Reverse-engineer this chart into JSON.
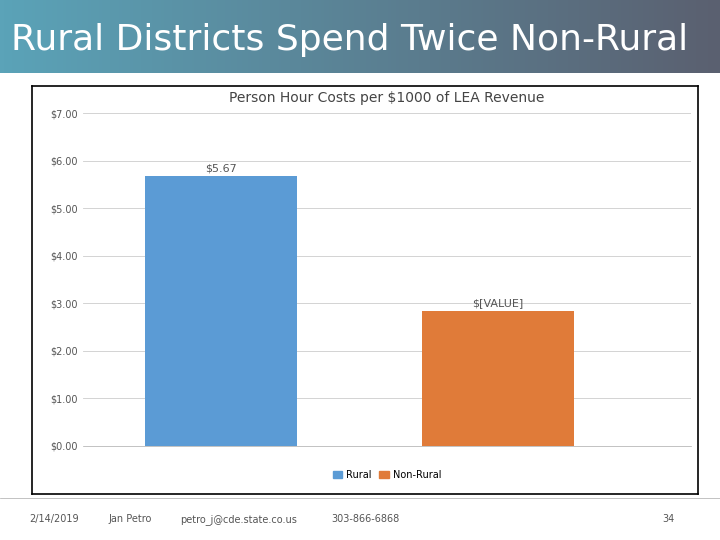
{
  "title": "Person Hour Costs per $1000 of LEA Revenue",
  "header_title": "Rural Districts Spend Twice Non-Rural",
  "categories": [
    "Rural",
    "Non-Rural"
  ],
  "values": [
    5.67,
    2.84
  ],
  "bar_labels": [
    "$5.67",
    "$[VALUE]"
  ],
  "bar_colors": [
    "#5B9BD5",
    "#E07B39"
  ],
  "ylim": [
    0,
    7
  ],
  "yticks": [
    0,
    1,
    2,
    3,
    4,
    5,
    6,
    7
  ],
  "ytick_labels": [
    "$0.00",
    "$1.00",
    "$2.00",
    "$3.00",
    "$4.00",
    "$5.00",
    "$6.00",
    "$7.00"
  ],
  "legend_labels": [
    "Rural",
    "Non-Rural"
  ],
  "header_color_left": "#5BA3B8",
  "header_color_right": "#5A6070",
  "chart_bg_color": "#FFFFFF",
  "outer_bg_color": "#FFFFFF",
  "footer_text_left": "2/14/2019",
  "footer_text_2": "Jan Petro",
  "footer_text_3": "petro_j@cde.state.co.us",
  "footer_text_4": "303-866-6868",
  "footer_page": "34",
  "title_fontsize": 10,
  "header_fontsize": 26,
  "bar_label_fontsize": 8,
  "axis_fontsize": 7,
  "legend_fontsize": 7,
  "footer_fontsize": 7
}
